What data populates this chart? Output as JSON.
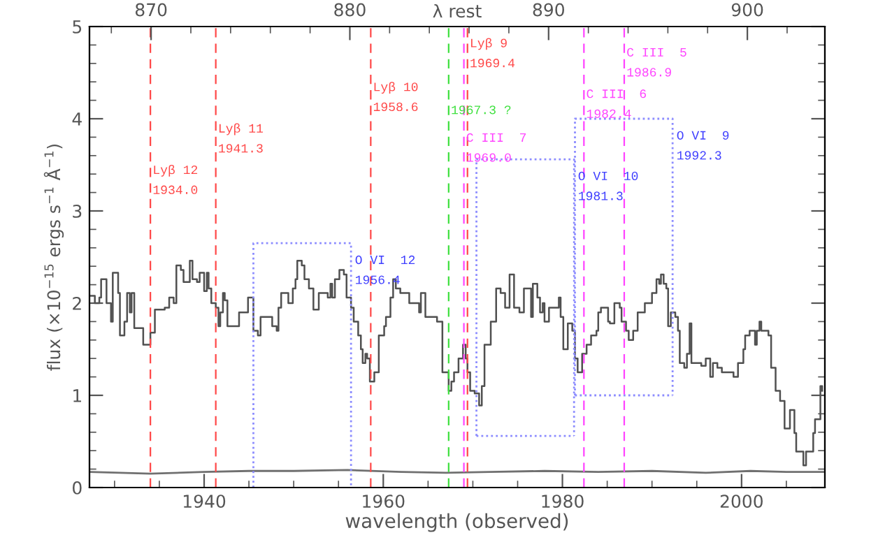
{
  "chart_data": {
    "type": "step",
    "xlabel": "wavelength (observed)",
    "ylabel": "flux (×10$^{−15}$ ergs s$^{−1}$ Å$^{−1}$)",
    "x2label": "λ rest",
    "xlim": [
      1927.2,
      2009.3
    ],
    "xticks": [
      1940,
      1960,
      1980,
      2000
    ],
    "ylim": [
      0,
      5
    ],
    "yticks": [
      0,
      1,
      2,
      3,
      4,
      5
    ],
    "x2lim": [
      866.9,
      903.9
    ],
    "x2ticks": [
      870,
      880,
      890,
      900
    ],
    "grid": false,
    "series": [
      {
        "color": "#505050",
        "x": [
          1927.2,
          1927.8,
          1928.3,
          1928.5,
          1929.1,
          1929.6,
          1929.8,
          1930.4,
          1930.6,
          1931.1,
          1931.4,
          1931.7,
          1931.9,
          1932.2,
          1932.7,
          1933.2,
          1933.8,
          1934.0,
          1934.5,
          1935.6,
          1936.1,
          1936.6,
          1936.9,
          1937.4,
          1937.7,
          1938.4,
          1938.7,
          1939.2,
          1939.5,
          1940.0,
          1940.3,
          1940.5,
          1940.8,
          1941.3,
          1941.6,
          1941.8,
          1942.1,
          1942.3,
          1942.6,
          1943.6,
          1943.9,
          1944.7,
          1944.9,
          1945.5,
          1946.0,
          1946.3,
          1947.0,
          1947.6,
          1948.1,
          1948.3,
          1948.6,
          1949.4,
          1949.9,
          1950.2,
          1950.4,
          1950.9,
          1951.2,
          1951.7,
          1952.2,
          1952.8,
          1953.3,
          1953.8,
          1954.1,
          1954.3,
          1954.6,
          1955.1,
          1955.6,
          1955.9,
          1956.4,
          1956.7,
          1957.2,
          1957.5,
          1957.7,
          1958.0,
          1958.2,
          1958.5,
          1959.0,
          1959.5,
          1960.1,
          1960.3,
          1960.8,
          1961.1,
          1961.4,
          1961.9,
          1962.9,
          1964.0,
          1964.2,
          1964.7,
          1966.0,
          1966.6,
          1967.3,
          1967.6,
          1967.9,
          1968.4,
          1968.9,
          1969.2,
          1969.4,
          1969.7,
          1970.2,
          1970.7,
          1971.0,
          1971.3,
          1972.0,
          1972.6,
          1973.1,
          1973.6,
          1974.1,
          1974.6,
          1975.2,
          1975.7,
          1976.2,
          1976.5,
          1976.7,
          1977.2,
          1977.5,
          1977.8,
          1978.0,
          1978.5,
          1979.6,
          1979.8,
          1980.1,
          1980.6,
          1981.1,
          1981.4,
          1981.7,
          1982.2,
          1982.7,
          1983.2,
          1983.8,
          1984.0,
          1984.3,
          1984.8,
          1985.1,
          1985.3,
          1985.8,
          1986.4,
          1986.6,
          1987.1,
          1987.4,
          1987.9,
          1988.4,
          1989.2,
          1990.0,
          1990.5,
          1990.8,
          1991.0,
          1991.3,
          1991.6,
          1991.8,
          1992.1,
          1992.6,
          1992.9,
          1993.1,
          1993.6,
          1993.9,
          1994.2,
          1994.4,
          1994.9,
          1995.5,
          1996.0,
          1996.5,
          1996.8,
          1997.3,
          1997.8,
          1998.3,
          1999.1,
          1999.6,
          2000.2,
          2000.4,
          2000.9,
          2001.5,
          2001.7,
          2002.0,
          2002.2,
          2002.8,
          2003.0,
          2003.3,
          2003.8,
          2004.3,
          2004.8,
          2005.4,
          2005.9,
          2006.1,
          2006.7,
          2006.9,
          2007.2,
          2007.4,
          2008.0,
          2008.2,
          2008.8,
          2009.0
        ],
        "values": [
          2.08,
          2.0,
          2.06,
          2.26,
          2.0,
          1.8,
          2.33,
          2.11,
          1.65,
          1.8,
          2.11,
          1.9,
          2.11,
          1.73,
          1.73,
          1.55,
          1.55,
          1.68,
          1.93,
          1.95,
          2.06,
          2.0,
          2.41,
          2.36,
          2.23,
          2.46,
          2.26,
          2.23,
          2.33,
          2.13,
          2.33,
          2.16,
          2.0,
          1.95,
          1.75,
          1.9,
          2.11,
          2.03,
          1.75,
          1.75,
          1.9,
          1.9,
          2.06,
          1.7,
          1.65,
          1.85,
          1.85,
          1.75,
          1.7,
          1.95,
          2.11,
          2.0,
          2.16,
          2.26,
          2.46,
          2.41,
          2.26,
          2.16,
          1.93,
          2.11,
          2.11,
          2.06,
          2.21,
          2.06,
          2.26,
          2.36,
          2.31,
          2.06,
          1.95,
          1.8,
          1.65,
          1.5,
          1.35,
          1.45,
          1.4,
          1.15,
          1.25,
          1.65,
          1.75,
          1.85,
          2.06,
          2.26,
          2.16,
          2.11,
          2.0,
          1.9,
          2.11,
          1.85,
          1.8,
          1.25,
          1.05,
          1.15,
          1.25,
          1.4,
          1.55,
          1.4,
          1.25,
          1.05,
          1.02,
          0.89,
          1.1,
          1.55,
          1.8,
          2.16,
          2.11,
          1.95,
          2.31,
          1.95,
          1.9,
          2.16,
          2.16,
          1.85,
          2.21,
          2.06,
          1.9,
          2.0,
          1.8,
          1.95,
          2.06,
          1.85,
          1.5,
          1.78,
          1.7,
          1.4,
          1.25,
          1.45,
          1.55,
          1.65,
          1.7,
          1.9,
          1.95,
          1.95,
          1.8,
          1.78,
          2.0,
          1.95,
          1.8,
          1.7,
          1.6,
          1.7,
          1.9,
          2.0,
          2.11,
          2.26,
          2.21,
          2.31,
          2.21,
          2.16,
          1.75,
          1.9,
          1.85,
          1.7,
          1.35,
          1.3,
          1.45,
          1.78,
          1.35,
          1.35,
          1.32,
          1.4,
          1.2,
          1.35,
          1.3,
          1.25,
          1.25,
          1.2,
          1.35,
          1.5,
          1.65,
          1.7,
          1.55,
          1.7,
          1.8,
          1.7,
          1.7,
          1.65,
          1.3,
          1.05,
          0.94,
          0.64,
          0.84,
          0.59,
          0.39,
          0.39,
          0.24,
          0.39,
          0.39,
          0.59,
          0.74,
          1.1,
          1.05
        ]
      },
      {
        "type": "line",
        "color": "#707070",
        "x": [
          1927.2,
          1934.0,
          1940.0,
          1945.0,
          1950.0,
          1956.0,
          1962.0,
          1967.0,
          1972.0,
          1978.0,
          1984.0,
          1990.0,
          1996.0,
          2001.0,
          2005.0,
          2009.3
        ],
        "values": [
          0.17,
          0.15,
          0.17,
          0.18,
          0.18,
          0.19,
          0.17,
          0.16,
          0.17,
          0.18,
          0.17,
          0.18,
          0.16,
          0.18,
          0.17,
          0.17
        ]
      },
      {
        "type": "line",
        "color": "#8c8cff",
        "line_style": "dotted",
        "x": [
          1945.5,
          1945.5,
          1956.4,
          1956.4
        ],
        "values": [
          0,
          2.65,
          2.65,
          0
        ]
      },
      {
        "type": "line",
        "color": "#8c8cff",
        "line_style": "dotted",
        "x": [
          1970.4,
          1970.4,
          1981.3,
          1981.3
        ],
        "values": [
          0.56,
          3.56,
          3.56,
          0.56
        ]
      },
      {
        "type": "line",
        "color": "#8c8cff",
        "line_style": "dotted",
        "x": [
          1970.4,
          1981.3
        ],
        "values": [
          0.56,
          0.56
        ]
      },
      {
        "type": "line",
        "color": "#8c8cff",
        "line_style": "dotted",
        "x": [
          1981.4,
          1981.4,
          1992.3,
          1992.3
        ],
        "values": [
          1.0,
          4.0,
          4.0,
          1.0
        ]
      },
      {
        "type": "line",
        "color": "#8c8cff",
        "line_style": "dotted",
        "x": [
          1981.4,
          1992.3
        ],
        "values": [
          1.0,
          1.0
        ]
      }
    ],
    "ref_lines": [
      {
        "axis": "x",
        "value": 1934.0,
        "label": "Lyβ 12\n1934.0",
        "color": "#ff4848",
        "line_style": "dashed"
      },
      {
        "axis": "x",
        "value": 1941.3,
        "label": "Lyβ 11\n1941.3",
        "color": "#ff4848",
        "line_style": "dashed"
      },
      {
        "axis": "x",
        "value": 1958.6,
        "label": "Lyβ 10\n1958.6",
        "color": "#ff4848",
        "line_style": "dashed"
      },
      {
        "axis": "x",
        "value": 1967.3,
        "label": "1967.3 ?",
        "color": "#3ee03e",
        "line_style": "dashed"
      },
      {
        "axis": "x",
        "value": 1969.0,
        "label": "C III  7\n1969.0",
        "color": "#ff44ff",
        "line_style": "dashed"
      },
      {
        "axis": "x",
        "value": 1969.4,
        "label": "Lyβ 9\n1969.4",
        "color": "#ff4848",
        "line_style": "dashed"
      },
      {
        "axis": "x",
        "value": 1982.4,
        "label": "C III  6\n1982.4",
        "color": "#ff44ff",
        "line_style": "dashed"
      },
      {
        "axis": "x",
        "value": 1986.9,
        "label": "C III  5\n1986.9",
        "color": "#ff44ff",
        "line_style": "dashed"
      }
    ],
    "annotations": [
      {
        "text": "O VI  12\n1956.4",
        "x": 1956.4,
        "y": 2.65
      },
      {
        "text": "O VI  10\n1981.3",
        "x": 1981.3,
        "y": 3.56
      },
      {
        "text": "O VI  9\n1992.3",
        "x": 1992.3,
        "y": 4.0
      }
    ]
  }
}
